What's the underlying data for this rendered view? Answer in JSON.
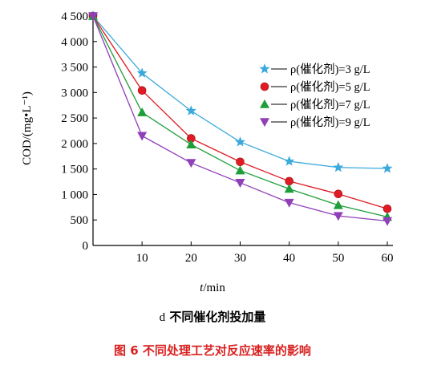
{
  "chart_data": {
    "type": "line",
    "ylabel": "COD/(mg•L⁻¹)",
    "xlabel_var": "t",
    "xlabel_unit": "/min",
    "x": [
      0,
      10,
      20,
      30,
      40,
      50,
      60
    ],
    "xlim": [
      0,
      60
    ],
    "ylim": [
      0,
      4500
    ],
    "x_ticks": [
      10,
      20,
      30,
      40,
      50,
      60
    ],
    "x_tick_labels": [
      "10",
      "20",
      "30",
      "40",
      "50",
      "60"
    ],
    "y_ticks": [
      0,
      500,
      1000,
      1500,
      2000,
      2500,
      3000,
      3500,
      4000,
      4500
    ],
    "y_tick_labels": [
      "0",
      "500",
      "1 000",
      "1 500",
      "2 000",
      "2 500",
      "3 000",
      "3 500",
      "4 000",
      "4 500"
    ],
    "grid": false,
    "legend_position": "top-right",
    "series": [
      {
        "name": "ρ(催化剂)=3 g/L",
        "color": "#3aa9dc",
        "marker": "star",
        "values": [
          4500,
          3380,
          2640,
          2030,
          1650,
          1530,
          1510
        ]
      },
      {
        "name": "ρ(催化剂)=5 g/L",
        "color": "#e01b24",
        "marker": "circle",
        "values": [
          4500,
          3040,
          2100,
          1640,
          1260,
          1010,
          720
        ]
      },
      {
        "name": "ρ(催化剂)=7 g/L",
        "color": "#1e9e3a",
        "marker": "triangle-up",
        "values": [
          4500,
          2610,
          1980,
          1470,
          1110,
          790,
          560
        ]
      },
      {
        "name": "ρ(催化剂)=9 g/L",
        "color": "#8f3fb8",
        "marker": "triangle-down",
        "values": [
          4500,
          2150,
          1620,
          1230,
          840,
          580,
          480
        ]
      }
    ]
  },
  "subcaption": {
    "letter": "d",
    "text": "不同催化剂投加量"
  },
  "figure_caption": "图 6   不同处理工艺对反应速率的影响"
}
